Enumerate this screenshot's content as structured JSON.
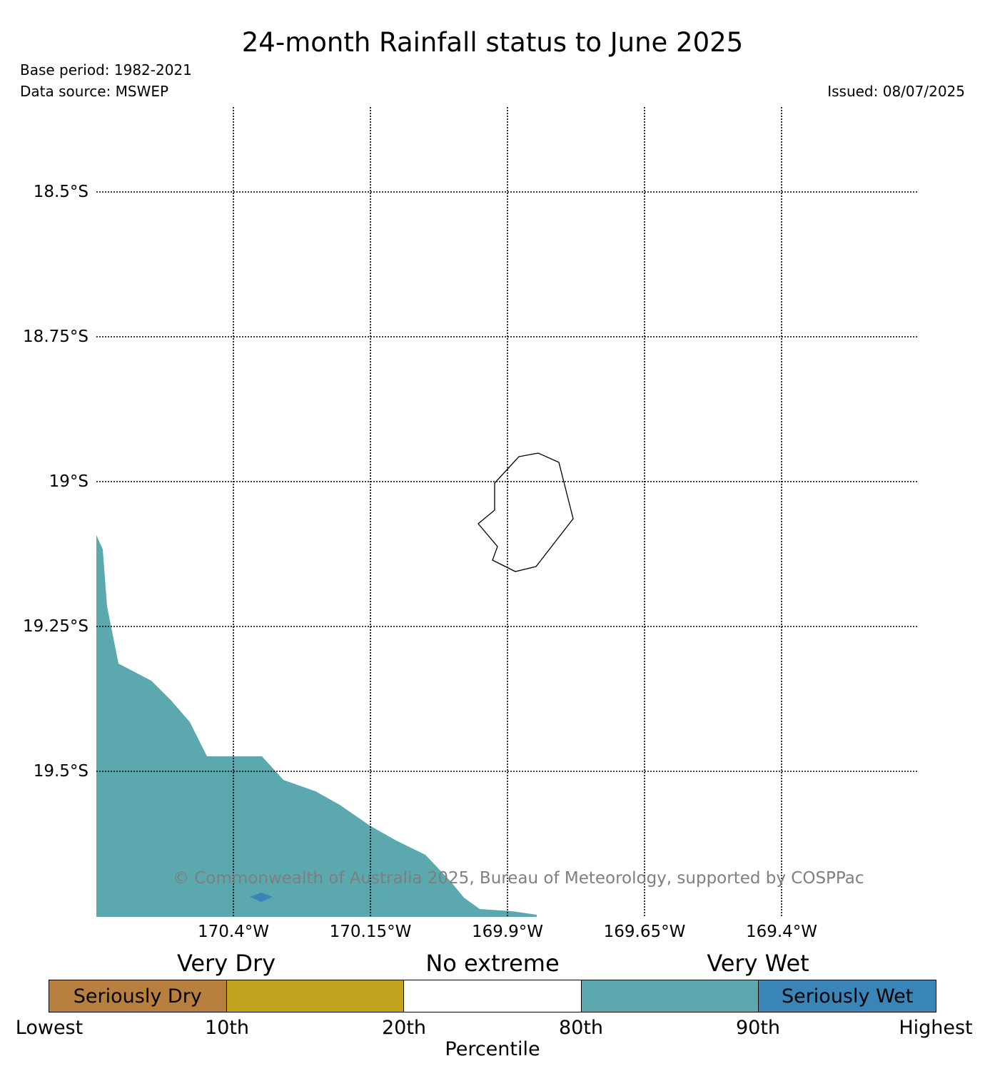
{
  "header": {
    "title": "24-month Rainfall status to June 2025",
    "base_period": "Base period: 1982-2021",
    "data_source": "Data source: MSWEP",
    "issued": "Issued: 08/07/2025"
  },
  "map": {
    "lat_labels": [
      "18.5°S",
      "18.75°S",
      "19°S",
      "19.25°S",
      "19.5°S"
    ],
    "lon_labels": [
      "170.4°W",
      "170.15°W",
      "169.9°W",
      "169.65°W",
      "169.4°W"
    ],
    "copyright": "© Commonwealth of Australia 2025, Bureau of Meteorology, supported by COSPPac",
    "island_name": "",
    "fill_colors": {
      "very_wet": "#5ba8ae",
      "seriously_wet": "#3a85b8"
    }
  },
  "legend": {
    "categories": {
      "very_dry": "Very Dry",
      "no_extreme": "No extreme",
      "very_wet": "Very Wet"
    },
    "segments": [
      {
        "label": "Seriously Dry",
        "color": "#b87f3e"
      },
      {
        "label": "",
        "color": "#c4a41f"
      },
      {
        "label": "",
        "color": "#ffffff"
      },
      {
        "label": "",
        "color": "#5ba8ae"
      },
      {
        "label": "Seriously Wet",
        "color": "#3a85b8"
      }
    ],
    "ticks": [
      "Lowest",
      "10th",
      "20th",
      "80th",
      "90th",
      "Highest"
    ],
    "axis_label": "Percentile"
  }
}
